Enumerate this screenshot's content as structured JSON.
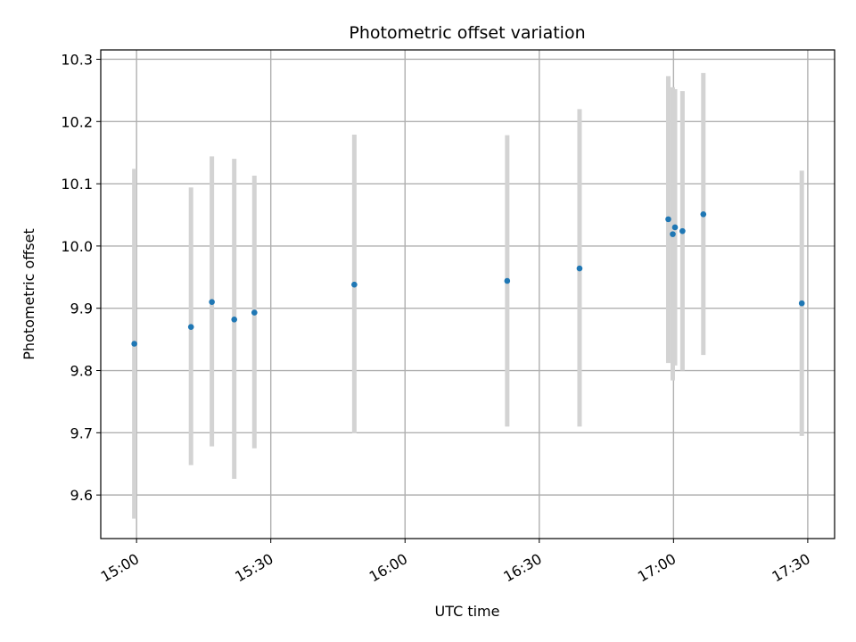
{
  "chart_data": {
    "type": "scatter",
    "title": "Photometric offset variation",
    "xlabel": "UTC time",
    "ylabel": "Photometric offset",
    "x_axis": {
      "type": "time",
      "range": [
        "14:52",
        "17:36"
      ],
      "ticks": [
        "15:00",
        "15:30",
        "16:00",
        "16:30",
        "17:00",
        "17:30"
      ],
      "tick_label_rotation": 30
    },
    "y_axis": {
      "range": [
        9.53,
        10.315
      ],
      "ticks": [
        9.6,
        9.7,
        9.8,
        9.9,
        10.0,
        10.1,
        10.2,
        10.3
      ],
      "tick_labels": [
        "9.6",
        "9.7",
        "9.8",
        "9.9",
        "10.0",
        "10.1",
        "10.2",
        "10.3"
      ]
    },
    "grid": true,
    "legend": "none",
    "colors": {
      "point": "#1f77b4",
      "errorbar": "#d3d3d3",
      "grid": "#b0b0b0"
    },
    "points": [
      {
        "time": "14:59:30",
        "y": 9.843,
        "yerr_low": 9.562,
        "yerr_high": 10.124
      },
      {
        "time": "15:12:10",
        "y": 9.87,
        "yerr_low": 9.648,
        "yerr_high": 10.094
      },
      {
        "time": "15:16:50",
        "y": 9.91,
        "yerr_low": 9.678,
        "yerr_high": 10.144
      },
      {
        "time": "15:21:50",
        "y": 9.882,
        "yerr_low": 9.626,
        "yerr_high": 10.14
      },
      {
        "time": "15:26:20",
        "y": 9.893,
        "yerr_low": 9.675,
        "yerr_high": 10.113
      },
      {
        "time": "15:48:40",
        "y": 9.938,
        "yerr_low": 9.699,
        "yerr_high": 10.179
      },
      {
        "time": "16:22:50",
        "y": 9.944,
        "yerr_low": 9.71,
        "yerr_high": 10.178
      },
      {
        "time": "16:39:00",
        "y": 9.964,
        "yerr_low": 9.71,
        "yerr_high": 10.22
      },
      {
        "time": "16:58:50",
        "y": 10.043,
        "yerr_low": 9.812,
        "yerr_high": 10.273
      },
      {
        "time": "16:59:50",
        "y": 10.019,
        "yerr_low": 9.784,
        "yerr_high": 10.255
      },
      {
        "time": "17:00:20",
        "y": 10.03,
        "yerr_low": 9.808,
        "yerr_high": 10.252
      },
      {
        "time": "17:02:00",
        "y": 10.024,
        "yerr_low": 9.8,
        "yerr_high": 10.249
      },
      {
        "time": "17:06:40",
        "y": 10.051,
        "yerr_low": 9.825,
        "yerr_high": 10.278
      },
      {
        "time": "17:28:40",
        "y": 9.908,
        "yerr_low": 9.695,
        "yerr_high": 10.121
      }
    ]
  }
}
